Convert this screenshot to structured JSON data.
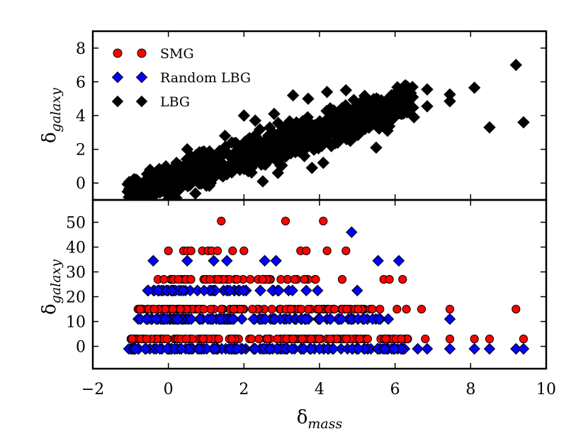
{
  "chart_data": [
    {
      "id": "top",
      "type": "scatter",
      "ylabel": {
        "main": "δ",
        "sub": "galaxy"
      },
      "xlim": [
        -2,
        10
      ],
      "ylim": [
        -1,
        9
      ],
      "yticks": [
        0,
        2,
        4,
        6,
        8
      ],
      "legend": {
        "placement": "top-left",
        "entries": [
          {
            "label": "SMG",
            "marker": "circle",
            "color": "#ff0000"
          },
          {
            "label": "Random LBG",
            "marker": "diamond",
            "color": "#0000ff"
          },
          {
            "label": "LBG",
            "marker": "diamond",
            "color": "#000000"
          }
        ]
      },
      "series": [
        {
          "name": "LBG",
          "marker": "diamond",
          "color": "#000000",
          "trend": {
            "x_range": [
              -1.1,
              6.5
            ],
            "y_at_min": -0.8,
            "y_at_max": 5.0,
            "spread": 1.0,
            "count": 900
          },
          "points": [
            {
              "x": 9.2,
              "y": 7.0
            },
            {
              "x": 9.4,
              "y": 3.6
            },
            {
              "x": 8.5,
              "y": 3.3
            },
            {
              "x": 8.1,
              "y": 5.65
            },
            {
              "x": 7.45,
              "y": 5.25
            },
            {
              "x": 7.45,
              "y": 4.85
            },
            {
              "x": 6.85,
              "y": 5.55
            },
            {
              "x": 6.85,
              "y": 4.55
            },
            {
              "x": 6.3,
              "y": 5.4
            },
            {
              "x": 6.5,
              "y": 3.9
            },
            {
              "x": 5.8,
              "y": 3.1
            },
            {
              "x": 5.5,
              "y": 2.1
            },
            {
              "x": 5.2,
              "y": 3.2
            },
            {
              "x": 4.95,
              "y": 2.8
            },
            {
              "x": 4.7,
              "y": 5.5
            },
            {
              "x": 4.2,
              "y": 5.4
            },
            {
              "x": 3.7,
              "y": 5.0
            },
            {
              "x": 3.3,
              "y": 5.2
            },
            {
              "x": 4.1,
              "y": 1.2
            },
            {
              "x": 3.8,
              "y": 0.9
            },
            {
              "x": 3.6,
              "y": 1.6
            },
            {
              "x": 2.5,
              "y": 0.1
            },
            {
              "x": 2.9,
              "y": 0.6
            },
            {
              "x": 2.2,
              "y": 0.9
            },
            {
              "x": 1.2,
              "y": 0.4
            },
            {
              "x": 1.5,
              "y": 2.8
            },
            {
              "x": 0.5,
              "y": 2.0
            },
            {
              "x": 2.8,
              "y": 4.1
            },
            {
              "x": 2.3,
              "y": 3.7
            },
            {
              "x": 2.0,
              "y": 4.0
            }
          ]
        }
      ]
    },
    {
      "id": "bottom",
      "type": "scatter",
      "ylabel": {
        "main": "δ",
        "sub": "galaxy"
      },
      "xlabel": {
        "main": "δ",
        "sub": "mass"
      },
      "xlim": [
        -2,
        10
      ],
      "ylim": [
        -9,
        59
      ],
      "xticks": [
        -2,
        0,
        2,
        4,
        6,
        8,
        10
      ],
      "xtick_labels": [
        "−2",
        "0",
        "2",
        "4",
        "6",
        "8",
        "10"
      ],
      "yticks": [
        0,
        10,
        20,
        30,
        40,
        50
      ],
      "series": [
        {
          "name": "SMG",
          "marker": "circle",
          "color": "#ff0000",
          "bands": [
            {
              "y": 3.0,
              "x_range": [
                -1.0,
                6.4
              ],
              "count": 130
            },
            {
              "y": 15.0,
              "x_range": [
                -0.85,
                5.4
              ],
              "count": 110
            },
            {
              "y": 27.0,
              "x_range": [
                -0.3,
                3.9
              ],
              "count": 50
            }
          ],
          "points": [
            {
              "x": 1.4,
              "y": 50.5
            },
            {
              "x": 3.1,
              "y": 50.5
            },
            {
              "x": 4.1,
              "y": 50.5
            },
            {
              "x": 0.0,
              "y": 38.5
            },
            {
              "x": 0.4,
              "y": 38.5
            },
            {
              "x": 0.5,
              "y": 38.5
            },
            {
              "x": 0.6,
              "y": 38.5
            },
            {
              "x": 0.9,
              "y": 38.5
            },
            {
              "x": 1.05,
              "y": 38.5
            },
            {
              "x": 1.15,
              "y": 38.5
            },
            {
              "x": 1.3,
              "y": 38.5
            },
            {
              "x": 1.7,
              "y": 38.5
            },
            {
              "x": 2.0,
              "y": 38.5
            },
            {
              "x": 3.5,
              "y": 38.5
            },
            {
              "x": 3.65,
              "y": 38.5
            },
            {
              "x": 4.2,
              "y": 38.5
            },
            {
              "x": 4.7,
              "y": 38.5
            },
            {
              "x": 4.6,
              "y": 27.0
            },
            {
              "x": 5.7,
              "y": 27.0
            },
            {
              "x": 5.85,
              "y": 27.0
            },
            {
              "x": 6.2,
              "y": 27.0
            },
            {
              "x": 5.6,
              "y": 15.0
            },
            {
              "x": 6.05,
              "y": 15.0
            },
            {
              "x": 6.3,
              "y": 15.0
            },
            {
              "x": 6.7,
              "y": 15.0
            },
            {
              "x": 7.45,
              "y": 15.0
            },
            {
              "x": 9.2,
              "y": 15.0
            },
            {
              "x": 6.8,
              "y": 3.0
            },
            {
              "x": 7.45,
              "y": 3.0
            },
            {
              "x": 8.1,
              "y": 3.0
            },
            {
              "x": 8.5,
              "y": 3.0
            },
            {
              "x": 9.4,
              "y": 3.0
            }
          ]
        },
        {
          "name": "Random LBG",
          "marker": "diamond",
          "color": "#0000ff",
          "bands": [
            {
              "y": -1.0,
              "x_range": [
                -1.1,
                6.4
              ],
              "count": 130
            },
            {
              "y": 11.0,
              "x_range": [
                -0.8,
                6.0
              ],
              "count": 110
            },
            {
              "y": 22.5,
              "x_range": [
                -0.55,
                3.3
              ],
              "count": 55
            }
          ],
          "points": [
            {
              "x": 4.85,
              "y": 46.0
            },
            {
              "x": -0.4,
              "y": 34.5
            },
            {
              "x": 0.5,
              "y": 34.5
            },
            {
              "x": 1.2,
              "y": 34.5
            },
            {
              "x": 1.55,
              "y": 34.5
            },
            {
              "x": 2.55,
              "y": 34.5
            },
            {
              "x": 2.85,
              "y": 34.5
            },
            {
              "x": 5.55,
              "y": 34.5
            },
            {
              "x": 6.1,
              "y": 34.5
            },
            {
              "x": 5.0,
              "y": 22.5
            },
            {
              "x": 3.65,
              "y": 22.5
            },
            {
              "x": 3.95,
              "y": 22.5
            },
            {
              "x": 7.45,
              "y": 11.0
            },
            {
              "x": 6.6,
              "y": -1.0
            },
            {
              "x": 6.85,
              "y": -1.0
            },
            {
              "x": 7.45,
              "y": -1.0
            },
            {
              "x": 8.1,
              "y": -1.0
            },
            {
              "x": 8.5,
              "y": -1.0
            },
            {
              "x": 9.2,
              "y": -1.0
            },
            {
              "x": 9.4,
              "y": -1.0
            }
          ]
        }
      ]
    }
  ]
}
